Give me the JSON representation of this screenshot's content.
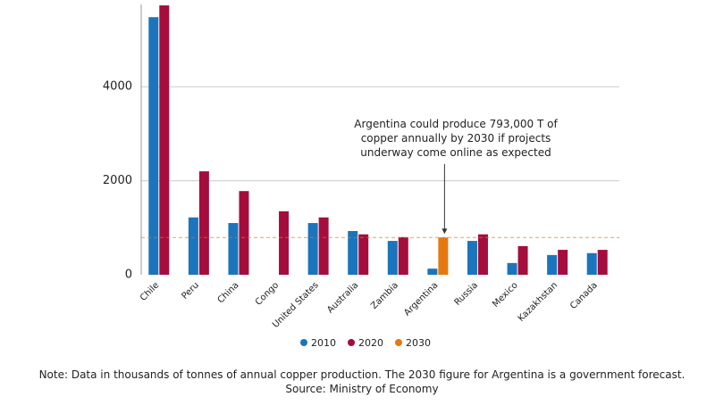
{
  "chart_data": {
    "type": "bar",
    "categories": [
      "Chile",
      "Peru",
      "China",
      "Congo",
      "United States",
      "Australia",
      "Zambia",
      "Argentina",
      "Russia",
      "Mexico",
      "Kazakhstan",
      "Canada"
    ],
    "series": [
      {
        "name": "2010",
        "color": "#1b75bc",
        "values": [
          5480,
          1220,
          1100,
          null,
          1100,
          930,
          720,
          130,
          720,
          250,
          420,
          460
        ]
      },
      {
        "name": "2020",
        "color": "#a50d3c",
        "values": [
          5730,
          2200,
          1780,
          1350,
          1220,
          860,
          800,
          null,
          860,
          610,
          530,
          530
        ]
      },
      {
        "name": "2030",
        "color": "#e5780f",
        "values": [
          null,
          null,
          null,
          null,
          null,
          null,
          null,
          793,
          null,
          null,
          null,
          null
        ]
      }
    ],
    "ylim": [
      0,
      5750
    ],
    "yticks": [
      0,
      2000,
      4000
    ],
    "grid": true,
    "annotation": [
      "Argentina could produce 793,000 T of",
      "copper annually by 2030 if projects",
      "underway come online as expected"
    ],
    "note": "Note: Data in thousands of tonnes of annual copper production. The 2030 figure for Argentina is a government forecast.",
    "source": "Source: Ministry of Economy"
  }
}
